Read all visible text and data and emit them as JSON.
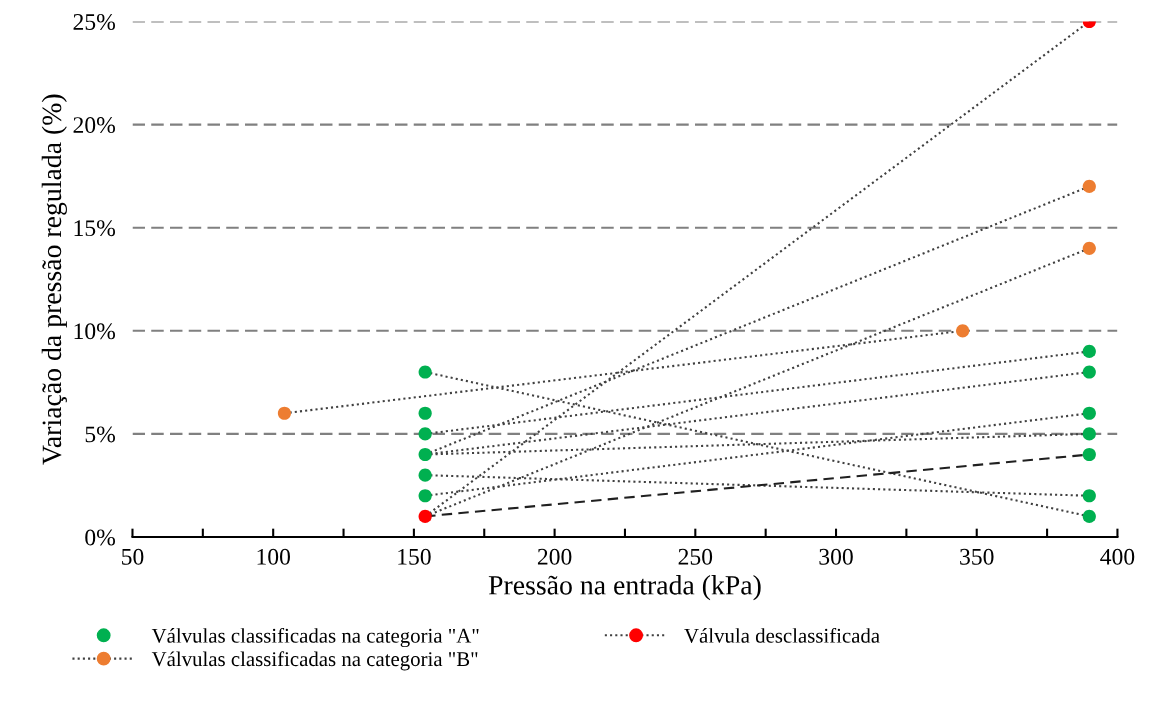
{
  "chart_data": {
    "type": "scatter",
    "xlabel": "Pressão na entrada (kPa)",
    "ylabel": "Variação da pressão regulada (%)",
    "xlim": [
      50,
      400
    ],
    "xticks": [
      50,
      {
        "value": 75,
        "label": null
      },
      100,
      {
        "value": 125,
        "label": null
      },
      150,
      {
        "value": 175,
        "label": null
      },
      200,
      {
        "value": 225,
        "label": null
      },
      250,
      {
        "value": 275,
        "label": null
      },
      300,
      {
        "value": 325,
        "label": null
      },
      350,
      {
        "value": 375,
        "label": null
      },
      400
    ],
    "ylim": [
      0,
      25
    ],
    "yticks": [
      {
        "value": 0,
        "label": "0%"
      },
      {
        "value": 5,
        "label": "5%"
      },
      {
        "value": 10,
        "label": "10%"
      },
      {
        "value": 15,
        "label": "15%"
      },
      {
        "value": 20,
        "label": "20%"
      },
      {
        "value": 25,
        "label": "25%"
      }
    ],
    "grid": "y",
    "legend": "bottom",
    "series": [
      {
        "type": "line",
        "color": "#404040",
        "line_style": "dotted",
        "marker": "none",
        "x": [
          154,
          390
        ],
        "values": [
          1,
          25
        ]
      },
      {
        "type": "line",
        "color": "#404040",
        "line_style": "dotted",
        "marker": "none",
        "x": [
          104,
          345
        ],
        "values": [
          6,
          10
        ]
      },
      {
        "type": "line",
        "color": "#404040",
        "line_style": "dotted",
        "marker": "none",
        "x": [
          154,
          390
        ],
        "values": [
          4,
          17
        ]
      },
      {
        "type": "line",
        "color": "#404040",
        "line_style": "dotted",
        "marker": "none",
        "x": [
          154,
          390
        ],
        "values": [
          1,
          14
        ]
      },
      {
        "type": "line",
        "color": "#404040",
        "line_style": "dotted",
        "marker": "none",
        "x": [
          154,
          390
        ],
        "values": [
          8,
          1
        ]
      },
      {
        "type": "line",
        "color": "#404040",
        "line_style": "dotted",
        "marker": "none",
        "x": [
          154,
          390
        ],
        "values": [
          5,
          9
        ]
      },
      {
        "type": "line",
        "color": "#404040",
        "line_style": "dotted",
        "marker": "none",
        "x": [
          154,
          390
        ],
        "values": [
          4,
          8
        ]
      },
      {
        "type": "line",
        "color": "#404040",
        "line_style": "dotted",
        "marker": "none",
        "x": [
          154,
          390
        ],
        "values": [
          4,
          5
        ]
      },
      {
        "type": "line",
        "color": "#404040",
        "line_style": "dotted",
        "marker": "none",
        "x": [
          154,
          390
        ],
        "values": [
          2,
          6
        ]
      },
      {
        "type": "line",
        "color": "#404040",
        "line_style": "dotted",
        "marker": "none",
        "x": [
          154,
          390
        ],
        "values": [
          3,
          2
        ]
      },
      {
        "type": "line",
        "color": "#202020",
        "line_style": "dashed",
        "marker": "none",
        "x": [
          154,
          390
        ],
        "values": [
          1,
          4
        ]
      },
      {
        "name": "Válvulas classificadas na categoria \"A\"",
        "color": "#00b050",
        "marker": "circle",
        "x": [
          154,
          154,
          154,
          154,
          154,
          154,
          390,
          390,
          390,
          390,
          390,
          390,
          390
        ],
        "values": [
          8,
          6,
          5,
          4,
          3,
          2,
          9,
          8,
          6,
          5,
          4,
          2,
          1
        ]
      },
      {
        "name": "Válvulas classificadas na categoria \"B\"",
        "color": "#ed7d31",
        "marker": "circle",
        "line_style": "dotted",
        "x": [
          104,
          345,
          390,
          390
        ],
        "values": [
          6,
          10,
          17,
          14
        ]
      },
      {
        "name": "Válvula desclassificada",
        "color": "#ff0000",
        "marker": "circle",
        "line_style": "dotted",
        "x": [
          154,
          390
        ],
        "values": [
          1,
          25
        ]
      }
    ]
  }
}
